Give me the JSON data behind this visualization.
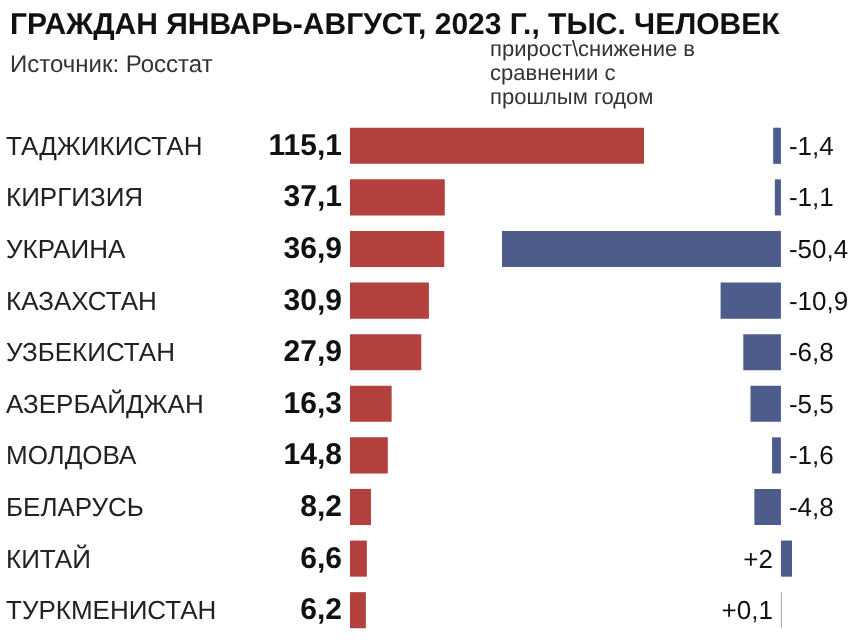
{
  "chart_data": [
    {
      "type": "bar",
      "orientation": "horizontal",
      "title": "ГРАЖДАН ЯНВАРЬ-АВГУСТ, 2023 Г., ТЫС. ЧЕЛОВЕК",
      "subtitle": "Источник: Росстат",
      "categories": [
        "ТАДЖИКИСТАН",
        "КИРГИЗИЯ",
        "УКРАИНА",
        "КАЗАХСТАН",
        "УЗБЕКИСТАН",
        "АЗЕРБАЙДЖАН",
        "МОЛДОВА",
        "БЕЛАРУСЬ",
        "КИТАЙ",
        "ТУРКМЕНИСТАН"
      ],
      "values": [
        115.1,
        37.1,
        36.9,
        30.9,
        27.9,
        16.3,
        14.8,
        8.2,
        6.6,
        6.2
      ],
      "value_labels": [
        "115,1",
        "37,1",
        "36,9",
        "30,9",
        "27,9",
        "16,3",
        "14,8",
        "8,2",
        "6,6",
        "6,2"
      ],
      "color": "#b3403c"
    },
    {
      "type": "bar",
      "orientation": "horizontal",
      "title": "прирост\\снижение в сравнении с прошлым годом",
      "categories": [
        null,
        null,
        null,
        null,
        null,
        null,
        null,
        null,
        null,
        null
      ],
      "values": [
        -1.4,
        -1.1,
        -50.4,
        -10.9,
        -6.8,
        -5.5,
        -1.6,
        -4.8,
        2,
        0.1
      ],
      "value_labels": [
        "-1,4",
        "-1,1",
        "-50,4",
        "-10,9",
        "-6,8",
        "-5,5",
        "-1,6",
        "-4,8",
        "+2",
        "+0,1"
      ],
      "color": "#4d5c8b"
    }
  ]
}
